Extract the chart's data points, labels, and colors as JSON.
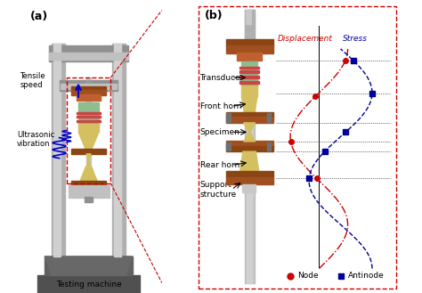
{
  "fig_width": 4.74,
  "fig_height": 3.29,
  "dpi": 100,
  "bg_color": "#ffffff",
  "label_a": "(a)",
  "label_b": "(b)",
  "tensile_speed_label": "Tensile\nspeed",
  "ultrasonic_label": "Ultrasonic\nvibration",
  "testing_machine_label": "Testing machine",
  "transducer_label": "Transducer",
  "front_horn_label": "Front horn",
  "specimen_label": "Specimen",
  "rear_horn_label": "Rear horn",
  "support_structure_label": "Support\nstructure",
  "displacement_label": "Displacement",
  "stress_label": "Stress",
  "node_label": "Node",
  "antinode_label": "Antinode",
  "node_color": "#cc0000",
  "antinode_color": "#000099",
  "displacement_color": "#cc0000",
  "stress_color": "#000099",
  "dashed_box_color": "#cc0000",
  "machine_gray": "#808080",
  "machine_dark": "#505050",
  "base_gray": "#606060",
  "column_gray": "#a0a0a0",
  "brown_clamp": "#8B4513",
  "transducer_green": "#8fbc8f",
  "horn_yellow": "#d4c060",
  "crosshead_gray": "#909090",
  "spring_blue": "#0000cc"
}
